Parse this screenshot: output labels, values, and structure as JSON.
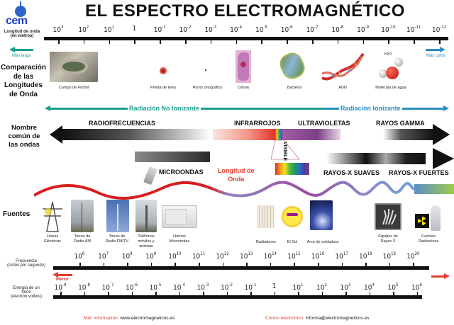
{
  "title": "EL ESPECTRO ELECTROMAGNÉTICO",
  "logo": {
    "text": "cem",
    "color": "#2341c8"
  },
  "wavelength_axis": {
    "label_line1": "Longitud de onda",
    "label_line2": "(en metros)",
    "ticks": [
      "10^3",
      "10^2",
      "10^1",
      "1",
      "10^-1",
      "10^-2",
      "10^-3",
      "10^-4",
      "10^-5",
      "10^-6",
      "10^-7",
      "10^-8",
      "10^-9",
      "10^-10",
      "10^-11",
      "10^-12"
    ],
    "left_arrow_label": "Más larga",
    "right_arrow_label": "Más corta"
  },
  "comparison": {
    "heading_lines": [
      "Comparación",
      "de las",
      "Longitudes",
      "de Onda"
    ],
    "items": [
      {
        "label": "Campo de Fútbol",
        "icon": "stadium-icon"
      },
      {
        "label": "Pelota de tenis",
        "icon": "tennis-ball-icon"
      },
      {
        "label": "Punto ortográfico",
        "icon": "dot-icon"
      },
      {
        "label": "Célula",
        "icon": "cell-icon"
      },
      {
        "label": "Bacteria",
        "icon": "bacteria-icon"
      },
      {
        "label": "ADN",
        "icon": "dna-icon"
      },
      {
        "label": "Molécula de agua",
        "icon": "water-molecule-icon",
        "formula": "H2O"
      }
    ]
  },
  "radiation": {
    "non_ionizing": "Radiación No Ionizante",
    "ionizing": "Radiación Ionizante",
    "non_ionizing_color": "#1a9e8e",
    "ionizing_color": "#2a8fc4"
  },
  "common_names": {
    "heading_lines": [
      "Nombre",
      "común de",
      "las ondas"
    ],
    "bands": [
      "RADIOFRECUENCIAS",
      "INFRARROJOS",
      "ULTRAVIOLETAS",
      "RAYOS GAMMA",
      "MICROONDAS",
      "VISIBLE",
      "RAYOS-X SUAVES",
      "RAYOS-X FUERTES"
    ],
    "wavelength_annotation_lines": [
      "Longitud de",
      "Onda"
    ]
  },
  "sources": {
    "heading": "Fuentes",
    "items": [
      {
        "label_lines": [
          "Líneas",
          "Eléctricas"
        ],
        "icon": "power-line-icon"
      },
      {
        "label_lines": [
          "Torres de",
          "Radio AM"
        ],
        "icon": "am-tower-icon"
      },
      {
        "label_lines": [
          "Torres de",
          "Radio FM/TV"
        ],
        "icon": "fm-tower-icon"
      },
      {
        "label_lines": [
          "Teléfonos",
          "móviles y",
          "antenas"
        ],
        "icon": "cell-antenna-icon"
      },
      {
        "label_lines": [
          "Hornos",
          "Microondas"
        ],
        "icon": "microwave-icon"
      },
      {
        "label_lines": [
          "Radiadores"
        ],
        "icon": "radiator-icon"
      },
      {
        "label_lines": [
          "El Sol"
        ],
        "icon": "sun-icon"
      },
      {
        "label_lines": [
          "Arco de soldadura"
        ],
        "icon": "welding-icon"
      },
      {
        "label_lines": [
          "Equipos de",
          "Rayos X"
        ],
        "icon": "xray-icon"
      },
      {
        "label_lines": [
          "Fuentes",
          "Radiactivas"
        ],
        "icon": "radioactive-icon"
      }
    ]
  },
  "frequency_axis": {
    "label_line1": "Frecuencia",
    "label_line2": "(ciclos por segundo)",
    "ticks": [
      "10^6",
      "10^7",
      "10^8",
      "10^9",
      "10^10",
      "10^11",
      "10^12",
      "10^13",
      "10^14",
      "10^15",
      "10^16",
      "10^17",
      "10^18",
      "10^19",
      "10^20"
    ],
    "left_arrow_label": "Menor"
  },
  "energy_axis": {
    "label_line1": "Energía de un",
    "label_line2": "fotón",
    "label_line3": "(electrón voltios)",
    "ticks": [
      "10^-9",
      "10^-8",
      "10^-7",
      "10^-6",
      "10^-5",
      "10^-4",
      "10^-3",
      "10^-2",
      "10^-1",
      "1",
      "10^1",
      "10^2",
      "10^3",
      "10^4",
      "10^5",
      "10^6"
    ]
  },
  "footer": {
    "info_label": "Más información:",
    "info_value": "www.electromagneticos.es",
    "email_label": "Correo electrónico:",
    "email_value": "informa@electromagneticos.es"
  }
}
